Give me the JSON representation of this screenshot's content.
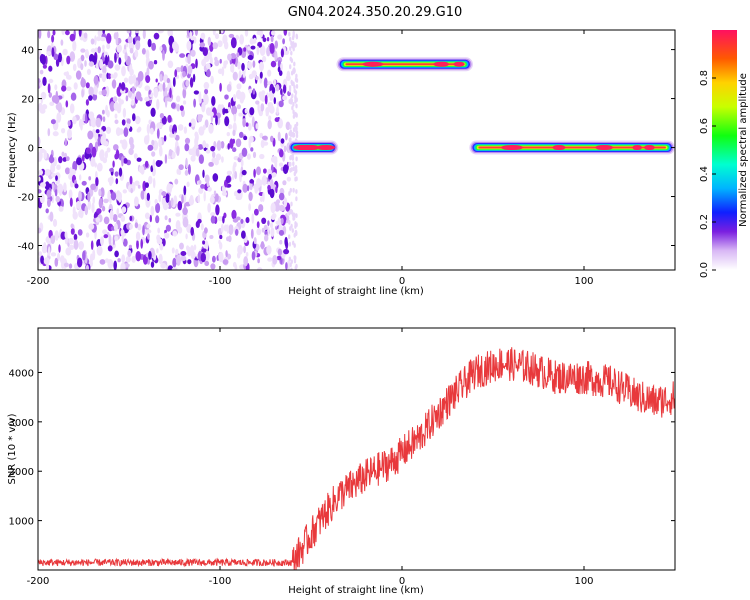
{
  "title": "GN04.2024.350.20.29.G10",
  "colors": {
    "snr_line": "#e8393c",
    "background_speckle": "#8a2be2"
  },
  "chart_data": [
    {
      "type": "heatmap",
      "xlabel": "Height of straight line (km)",
      "ylabel": "Frequency (Hz)",
      "xlim": [
        -200,
        150
      ],
      "ylim": [
        -50,
        48
      ],
      "x_ticks": [
        -200,
        -100,
        0,
        100
      ],
      "y_ticks": [
        -40,
        -20,
        0,
        20,
        40
      ],
      "x_tick_labels": [
        "-200",
        "-100",
        "0",
        "100"
      ],
      "y_tick_labels": [
        "-40",
        "-20",
        "0",
        "20",
        "40"
      ],
      "colorbar": {
        "label": "Normalized spectral amplitude",
        "range": [
          0,
          1
        ],
        "ticks": [
          0.0,
          0.2,
          0.4,
          0.6,
          0.8
        ],
        "tick_labels": [
          "0.0",
          "0.2",
          "0.4",
          "0.6",
          "0.8"
        ]
      },
      "features": [
        {
          "name": "noise",
          "x_range": [
            -200,
            -62
          ],
          "y_range": [
            -50,
            48
          ]
        },
        {
          "name": "band",
          "x_range": [
            -63,
            -35
          ],
          "y_center": 0
        },
        {
          "name": "band",
          "x_range": [
            -36,
            39
          ],
          "y_center": 34
        },
        {
          "name": "band",
          "x_range": [
            37,
            150
          ],
          "y_center": 0
        }
      ]
    },
    {
      "type": "line",
      "xlabel": "Height of straight line (km)",
      "ylabel": "SNR (10 * v/v)",
      "xlim": [
        -200,
        150
      ],
      "ylim": [
        0,
        4900
      ],
      "x_ticks": [
        -200,
        -100,
        0,
        100
      ],
      "y_ticks": [
        1000,
        2000,
        3000,
        4000
      ],
      "x_tick_labels": [
        "-200",
        "-100",
        "0",
        "100"
      ],
      "y_tick_labels": [
        "1000",
        "2000",
        "3000",
        "4000"
      ],
      "trend": {
        "x": [
          -200,
          -60,
          -45,
          -35,
          -20,
          -5,
          10,
          25,
          40,
          55,
          70,
          85,
          100,
          115,
          130,
          140,
          150
        ],
        "y": [
          150,
          150,
          1000,
          1500,
          1900,
          2200,
          2700,
          3400,
          4000,
          4200,
          4100,
          3900,
          3900,
          3800,
          3500,
          3400,
          3500
        ]
      },
      "noise_amplitude": [
        70,
        350
      ]
    }
  ]
}
